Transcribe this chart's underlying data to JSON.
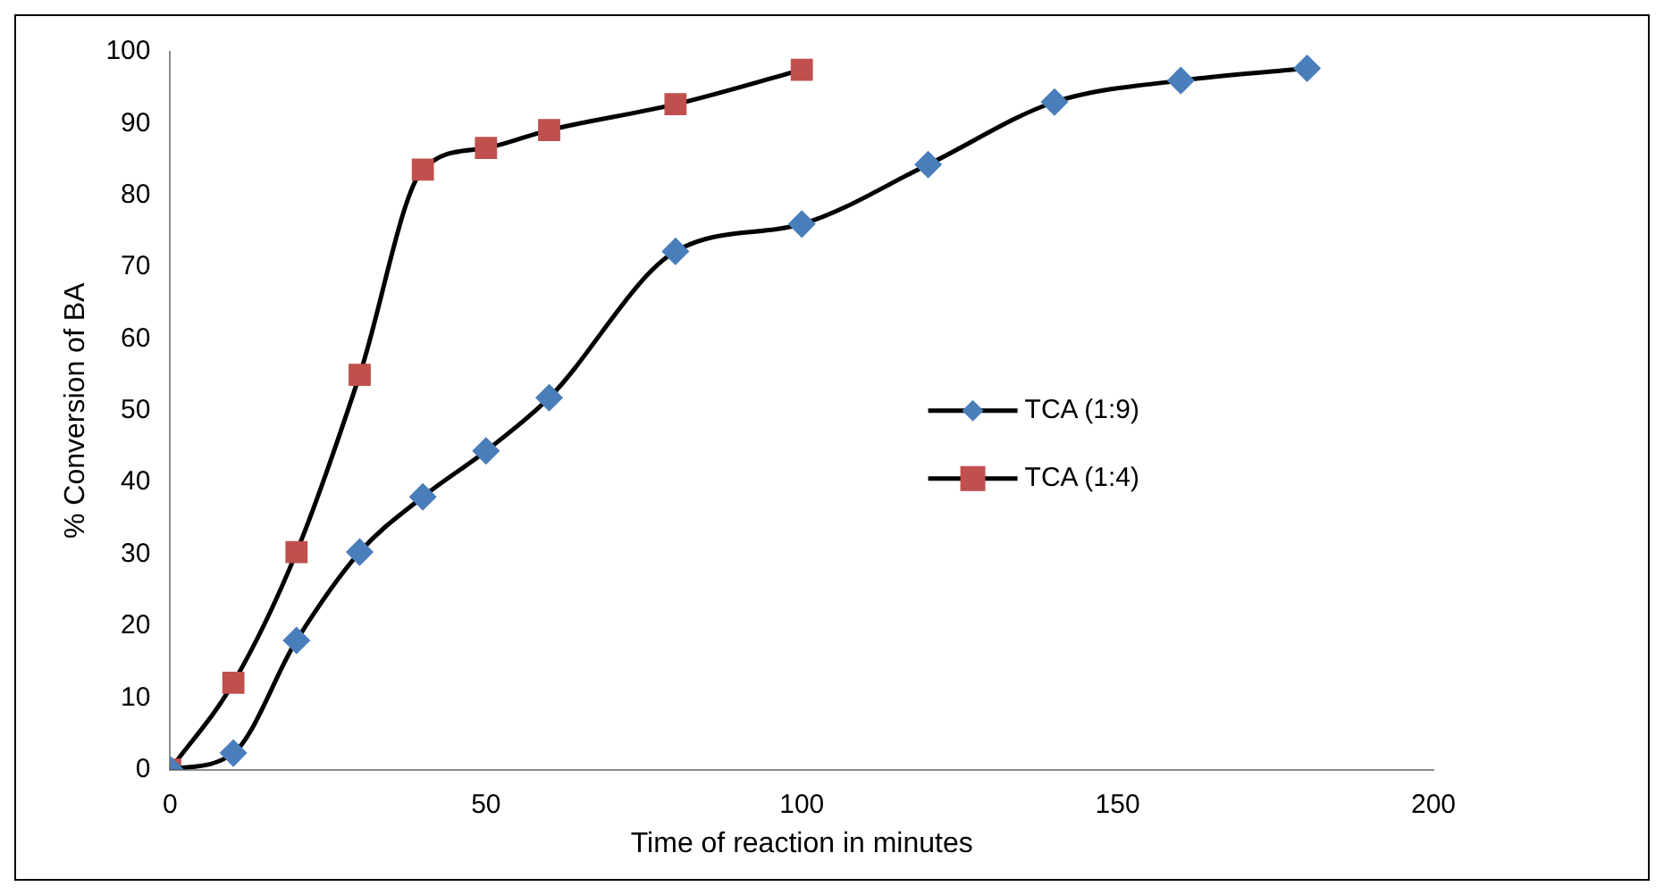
{
  "chart_data": {
    "type": "line",
    "xlabel": "Time of reaction in minutes",
    "ylabel": "% Conversion of BA",
    "xlim": [
      0,
      200
    ],
    "xticks": [
      0,
      50,
      100,
      150,
      200
    ],
    "ylim": [
      0,
      100
    ],
    "yticks": [
      0,
      10,
      20,
      30,
      40,
      50,
      60,
      70,
      80,
      90,
      100
    ],
    "grid": false,
    "legend": "right",
    "series": [
      {
        "name": "TCA (1:9)",
        "color": "#4a7ebb",
        "marker": "diamond",
        "x": [
          0,
          10,
          20,
          30,
          40,
          50,
          60,
          80,
          100,
          120,
          140,
          160,
          180
        ],
        "values": [
          0,
          2.3,
          18,
          30.3,
          38,
          44.4,
          51.8,
          72.2,
          76,
          84.3,
          93,
          96,
          97.7
        ]
      },
      {
        "name": "TCA (1:4)",
        "color": "#c0504d",
        "marker": "square",
        "x": [
          0,
          10,
          20,
          30,
          40,
          50,
          60,
          80,
          100
        ],
        "values": [
          0,
          12.1,
          30.3,
          55,
          83.6,
          86.6,
          89.1,
          92.7,
          97.5
        ]
      }
    ]
  }
}
